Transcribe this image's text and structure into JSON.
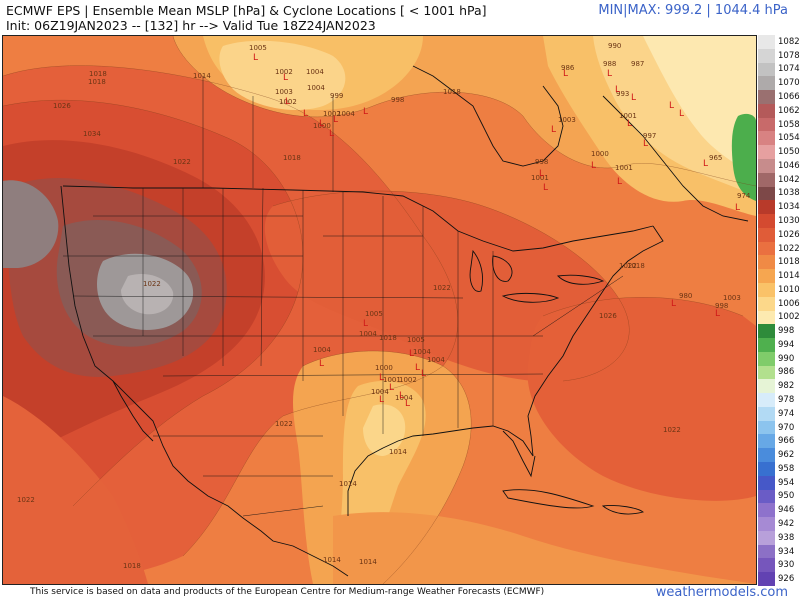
{
  "header": {
    "title": "ECMWF EPS | Ensemble Mean MSLP [hPa] & Cyclone Locations [ < 1001 hPa]",
    "subtitle": "Init: 06Z19JAN2023 -- [132] hr --> Valid Tue 18Z24JAN2023",
    "minmax": "MIN|MAX: 999.2 | 1044.4 hPa"
  },
  "footer": {
    "credit": "This service is based on data and products of the European Centre for Medium-range Weather Forecasts (ECMWF)",
    "site": "weathermodels.com"
  },
  "colorbar": {
    "levels": [
      {
        "label": "1082",
        "color": "#e8e8e8"
      },
      {
        "label": "1078",
        "color": "#d5d5d5"
      },
      {
        "label": "1074",
        "color": "#c2c2c2"
      },
      {
        "label": "1070",
        "color": "#aeaaaa"
      },
      {
        "label": "1066",
        "color": "#9a7070"
      },
      {
        "label": "1062",
        "color": "#b45a5a"
      },
      {
        "label": "1058",
        "color": "#c86a6a"
      },
      {
        "label": "1054",
        "color": "#d88282"
      },
      {
        "label": "1050",
        "color": "#e6a0a0"
      },
      {
        "label": "1046",
        "color": "#c78c8c"
      },
      {
        "label": "1042",
        "color": "#a06868"
      },
      {
        "label": "1038",
        "color": "#7d4848"
      },
      {
        "label": "1034",
        "color": "#b83a2a"
      },
      {
        "label": "1030",
        "color": "#d44a30"
      },
      {
        "label": "1026",
        "color": "#e05c38"
      },
      {
        "label": "1022",
        "color": "#ea7040"
      },
      {
        "label": "1018",
        "color": "#f08a45"
      },
      {
        "label": "1014",
        "color": "#f6a650"
      },
      {
        "label": "1010",
        "color": "#fac268"
      },
      {
        "label": "1006",
        "color": "#fcd88a"
      },
      {
        "label": "1002",
        "color": "#fdeab0"
      },
      {
        "label": "998",
        "color": "#2e8b3a"
      },
      {
        "label": "994",
        "color": "#4fb04e"
      },
      {
        "label": "990",
        "color": "#7fcc6a"
      },
      {
        "label": "986",
        "color": "#b2e08e"
      },
      {
        "label": "982",
        "color": "#e6f4d6"
      },
      {
        "label": "978",
        "color": "#d7ecfa"
      },
      {
        "label": "974",
        "color": "#b2daf4"
      },
      {
        "label": "970",
        "color": "#8cc4ee"
      },
      {
        "label": "966",
        "color": "#67a8e6"
      },
      {
        "label": "962",
        "color": "#4a8cdc"
      },
      {
        "label": "958",
        "color": "#3870d0"
      },
      {
        "label": "954",
        "color": "#4658c8"
      },
      {
        "label": "950",
        "color": "#6a5cc6"
      },
      {
        "label": "946",
        "color": "#8e72cc"
      },
      {
        "label": "942",
        "color": "#a68ad4"
      },
      {
        "label": "938",
        "color": "#b8a0da"
      },
      {
        "label": "934",
        "color": "#8c70c6"
      },
      {
        "label": "930",
        "color": "#7656bc"
      },
      {
        "label": "926",
        "color": "#6242b2"
      }
    ]
  },
  "map": {
    "isobar_labels": [
      "1018",
      "1026",
      "1014",
      "1018",
      "1034",
      "1022",
      "1018",
      "1022",
      "1005",
      "1002",
      "1004",
      "1004",
      "1003",
      "1002",
      "999",
      "1000",
      "1002",
      "1004",
      "998",
      "1003",
      "988",
      "990",
      "986",
      "987",
      "993",
      "1001",
      "997",
      "998",
      "1001",
      "1000",
      "1001",
      "1005",
      "1004",
      "1004",
      "1005",
      "1004",
      "1004",
      "1000",
      "1001",
      "1002",
      "1004",
      "1004",
      "1022",
      "1018",
      "1014",
      "1014",
      "1014",
      "1014",
      "1018",
      "1022",
      "1022",
      "1022",
      "1018",
      "1018",
      "1022",
      "1026",
      "980",
      "998",
      "1003",
      "965",
      "974"
    ]
  }
}
